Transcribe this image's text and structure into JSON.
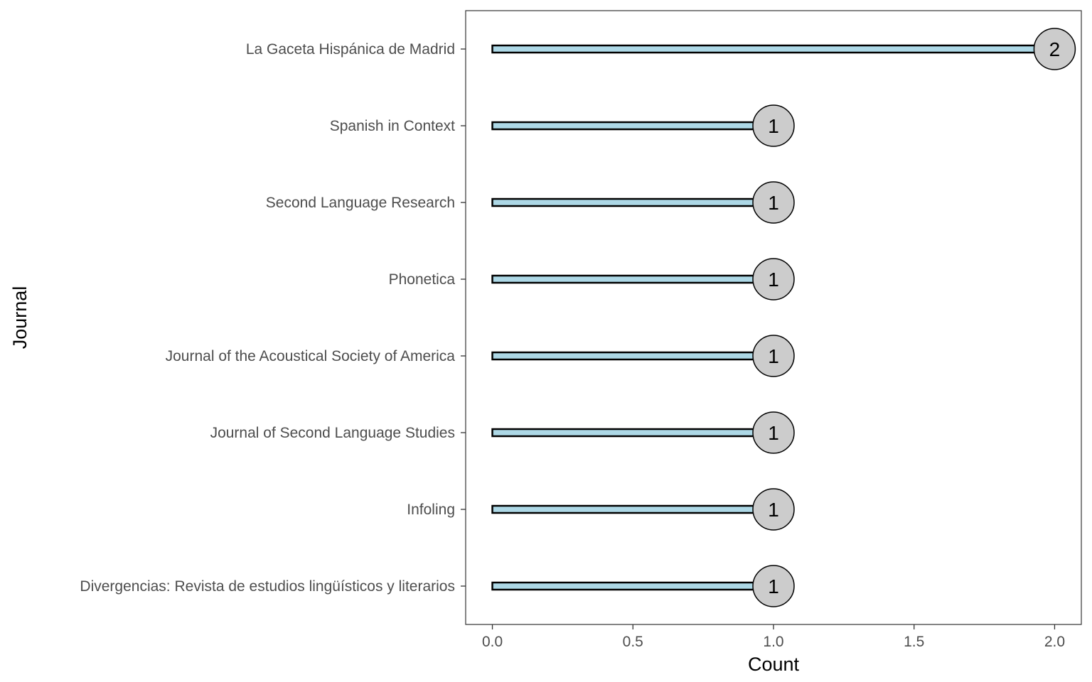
{
  "chart_data": {
    "type": "bar",
    "orientation": "horizontal",
    "style": "lollipop",
    "categories": [
      "La Gaceta Hispánica de Madrid",
      "Spanish in Context",
      "Second Language Research",
      "Phonetica",
      "Journal of the Acoustical Society of America",
      "Journal of Second Language Studies",
      "Infoling",
      "Divergencias: Revista de estudios lingüísticos y literarios"
    ],
    "values": [
      2,
      1,
      1,
      1,
      1,
      1,
      1,
      1
    ],
    "data_labels": [
      "2",
      "1",
      "1",
      "1",
      "1",
      "1",
      "1",
      "1"
    ],
    "xlabel": "Count",
    "ylabel": "Journal",
    "xlim": [
      -0.095,
      2.095
    ],
    "x_ticks": [
      0.0,
      0.5,
      1.0,
      1.5,
      2.0
    ],
    "x_tick_labels": [
      "0.0",
      "0.5",
      "1.0",
      "1.5",
      "2.0"
    ],
    "grid": false,
    "colors": {
      "bar_fill": "#add8e6",
      "bar_stroke": "#000000",
      "marker_fill": "#cccccc",
      "marker_stroke": "#000000",
      "tick_label": "#4d4d4d",
      "axis_title": "#000000"
    }
  }
}
